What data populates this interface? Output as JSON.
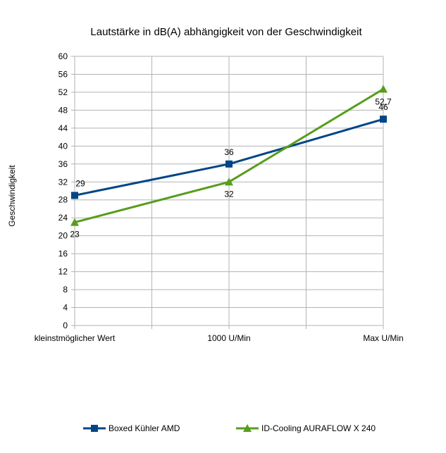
{
  "chart_data": {
    "type": "line",
    "title": "Lautstärke in dB(A) abhängigkeit von der Geschwindigkeit",
    "xlabel": "",
    "ylabel": "Geschwindigkeit",
    "categories": [
      "kleinstmöglicher Wert",
      "1000 U/Min",
      "Max U/Min"
    ],
    "ylim": [
      0,
      60
    ],
    "yticks": [
      0,
      4,
      8,
      12,
      16,
      20,
      24,
      28,
      32,
      36,
      40,
      44,
      48,
      52,
      56,
      60
    ],
    "grid": true,
    "legend_position": "bottom",
    "series": [
      {
        "name": "Boxed Kühler AMD",
        "values": [
          29,
          36,
          46
        ],
        "labels": [
          "29",
          "36",
          "46"
        ],
        "color": "#004586",
        "marker": "square"
      },
      {
        "name": "ID-Cooling AURAFLOW X 240",
        "values": [
          23,
          32,
          52.7
        ],
        "labels": [
          "23",
          "32",
          "52,7"
        ],
        "color": "#579d1c",
        "marker": "triangle"
      }
    ]
  }
}
